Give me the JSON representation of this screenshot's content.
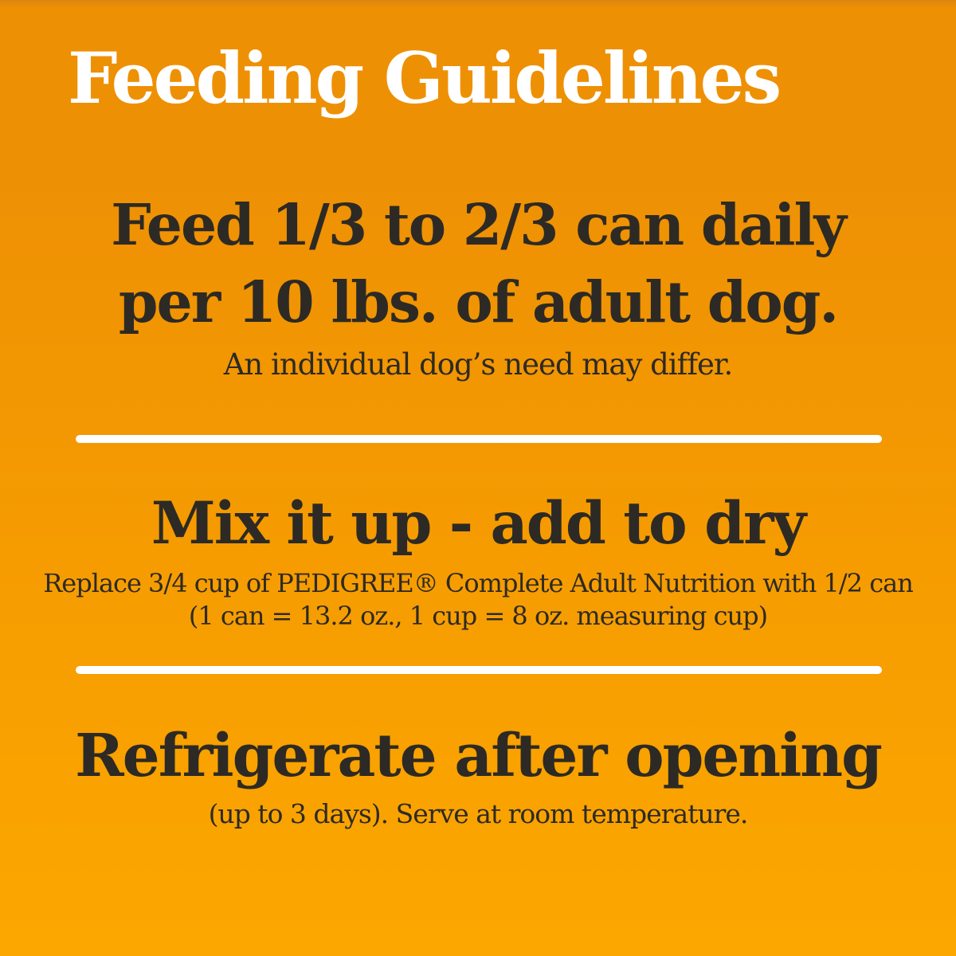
{
  "colors": {
    "bg_top": "#ee9004",
    "bg_bottom": "#fca700",
    "bg_edge": "#dd850f",
    "heading": "#ffffff",
    "text": "#2d2a25",
    "divider": "#ffffff"
  },
  "header": {
    "title": "Feeding Guidelines"
  },
  "sections": {
    "daily_amount": {
      "heading_line1": "Feed 1/3 to 2/3 can daily",
      "heading_line2": "per 10 lbs. of adult dog.",
      "note": "An individual dog’s need may differ."
    },
    "mix": {
      "heading": "Mix it up - add to dry",
      "note_line1": "Replace 3/4 cup of PEDIGREE® Complete Adult Nutrition with 1/2 can",
      "note_line2": "(1 can = 13.2 oz., 1 cup = 8 oz. measuring cup)"
    },
    "refrigerate": {
      "heading": "Refrigerate after opening",
      "note": "(up to 3 days). Serve at room temperature."
    }
  }
}
